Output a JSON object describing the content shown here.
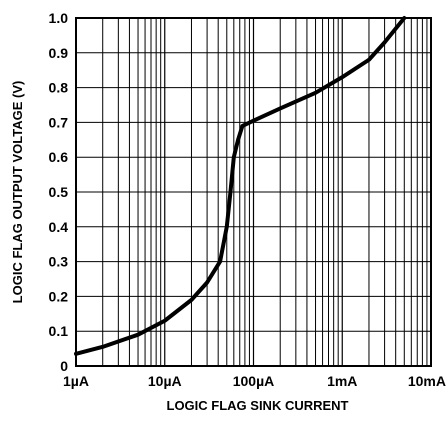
{
  "chart_data": {
    "type": "line",
    "title": "",
    "xlabel": "LOGIC FLAG SINK CURRENT",
    "ylabel": "LOGIC FLAG OUTPUT VOLTAGE (V)",
    "x_scale": "log",
    "xlim": [
      "1µA",
      "10mA"
    ],
    "xlim_amps": [
      1e-06,
      0.01
    ],
    "ylim": [
      0,
      1.0
    ],
    "grid": true,
    "x_ticks": [
      {
        "value": 1e-06,
        "label": "1µA"
      },
      {
        "value": 1e-05,
        "label": "10µA"
      },
      {
        "value": 0.0001,
        "label": "100µA"
      },
      {
        "value": 0.001,
        "label": "1mA"
      },
      {
        "value": 0.01,
        "label": "10mA"
      }
    ],
    "y_ticks": [
      {
        "value": 0,
        "label": "0"
      },
      {
        "value": 0.1,
        "label": "0.1"
      },
      {
        "value": 0.2,
        "label": "0.2"
      },
      {
        "value": 0.3,
        "label": "0.3"
      },
      {
        "value": 0.4,
        "label": "0.4"
      },
      {
        "value": 0.5,
        "label": "0.5"
      },
      {
        "value": 0.6,
        "label": "0.6"
      },
      {
        "value": 0.7,
        "label": "0.7"
      },
      {
        "value": 0.8,
        "label": "0.8"
      },
      {
        "value": 0.9,
        "label": "0.9"
      },
      {
        "value": 1.0,
        "label": "1.0"
      }
    ],
    "series": [
      {
        "x": [
          1e-06,
          2e-06,
          5e-06,
          1e-05,
          2e-05,
          3e-05,
          4.2e-05,
          5e-05,
          5.5e-05,
          6e-05,
          6.7e-05,
          7.5e-05,
          0.0001,
          0.0002,
          0.0005,
          0.001,
          0.002,
          0.003,
          0.005
        ],
        "y": [
          0.035,
          0.055,
          0.09,
          0.13,
          0.19,
          0.24,
          0.3,
          0.4,
          0.5,
          0.6,
          0.65,
          0.69,
          0.705,
          0.74,
          0.785,
          0.83,
          0.88,
          0.93,
          1.0
        ]
      }
    ],
    "colors": {
      "line": "#000000",
      "grid": "#000000",
      "background": "#ffffff"
    }
  }
}
